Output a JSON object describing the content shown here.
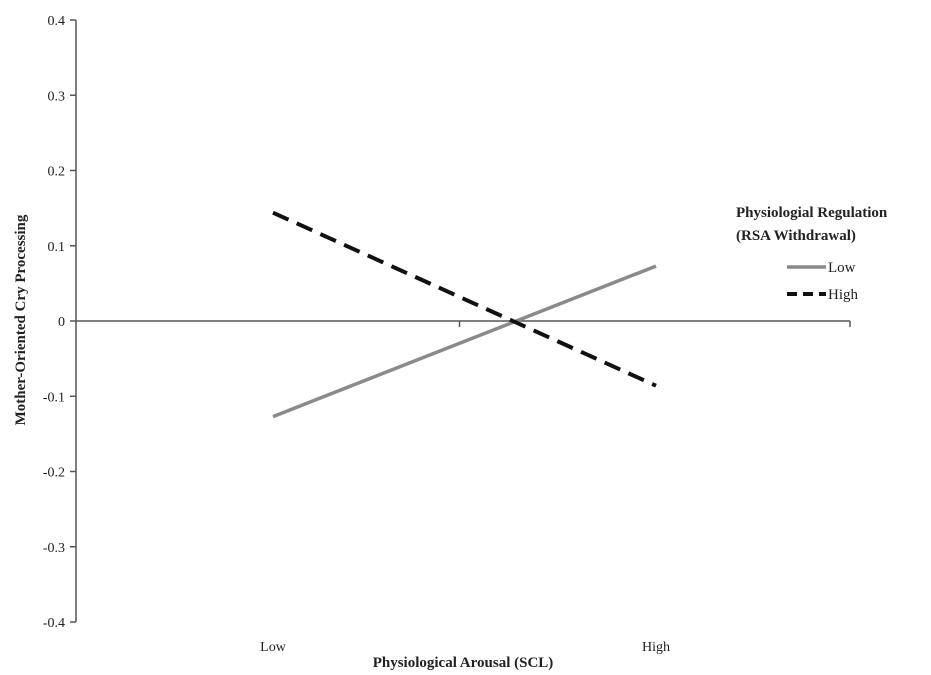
{
  "chart_data": {
    "type": "line",
    "xlabel": "Physiological Arousal (SCL)",
    "ylabel": "Mother-Oriented Cry Processing",
    "categories": [
      "Low",
      "High"
    ],
    "ylim": [
      -0.4,
      0.4
    ],
    "yticks": [
      "0.4",
      "0.3",
      "0.2",
      "0.1",
      "0",
      "-0.1",
      "-0.2",
      "-0.3",
      "-0.4"
    ],
    "grid": false,
    "legend": {
      "title_line1": "Physiologial Regulation",
      "title_line2": "(RSA Withdrawal)",
      "placement": "right"
    },
    "series": [
      {
        "name": "Low",
        "values": [
          -0.127,
          0.073
        ],
        "color": "#8a8a8a",
        "style": "solid"
      },
      {
        "name": "High",
        "values": [
          0.144,
          -0.086
        ],
        "color": "#111111",
        "style": "dashed"
      }
    ]
  }
}
